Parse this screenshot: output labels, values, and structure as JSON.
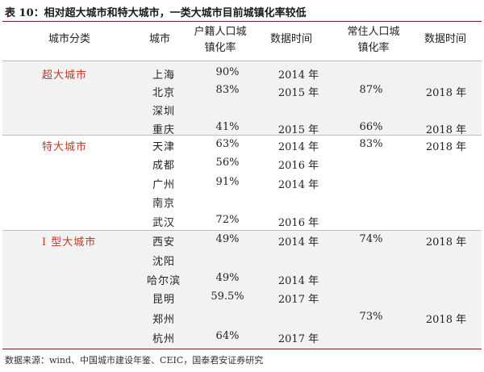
{
  "title": "表 10：相对超大城市和特大城市，一类大城市目前城镇化率较低",
  "table": {
    "headers": {
      "category": "城市分类",
      "city": "城市",
      "hukou_rate": "户籍人口城镇化率",
      "hukou_time": "数据时间",
      "resident_rate": "常住人口城镇化率",
      "resident_time": "数据时间"
    },
    "groups": [
      {
        "category": "超大城市",
        "rows": [
          {
            "city": "上海",
            "hukou_rate": "90%",
            "hukou_time": "2014 年",
            "resident_rate": "",
            "resident_time": ""
          },
          {
            "city": "北京",
            "hukou_rate": "83%",
            "hukou_time": "2015 年",
            "resident_rate": "87%",
            "resident_time": "2018 年"
          },
          {
            "city": "深圳",
            "hukou_rate": "",
            "hukou_time": "",
            "resident_rate": "",
            "resident_time": ""
          },
          {
            "city": "重庆",
            "hukou_rate": "41%",
            "hukou_time": "2015 年",
            "resident_rate": "66%",
            "resident_time": "2018 年"
          }
        ]
      },
      {
        "category": "特大城市",
        "rows": [
          {
            "city": "天津",
            "hukou_rate": "63%",
            "hukou_time": "2014 年",
            "resident_rate": "83%",
            "resident_time": "2018 年"
          },
          {
            "city": "成都",
            "hukou_rate": "56%",
            "hukou_time": "2016 年",
            "resident_rate": "",
            "resident_time": ""
          },
          {
            "city": "广州",
            "hukou_rate": "91%",
            "hukou_time": "2014 年",
            "resident_rate": "",
            "resident_time": ""
          },
          {
            "city": "南京",
            "hukou_rate": "",
            "hukou_time": "",
            "resident_rate": "",
            "resident_time": ""
          },
          {
            "city": "武汉",
            "hukou_rate": "72%",
            "hukou_time": "2016 年",
            "resident_rate": "",
            "resident_time": ""
          }
        ]
      },
      {
        "category": "I 型大城市",
        "rows": [
          {
            "city": "西安",
            "hukou_rate": "49%",
            "hukou_time": "2014 年",
            "resident_rate": "74%",
            "resident_time": "2018 年"
          },
          {
            "city": "沈阳",
            "hukou_rate": "",
            "hukou_time": "",
            "resident_rate": "",
            "resident_time": ""
          },
          {
            "city": "哈尔滨",
            "hukou_rate": "49%",
            "hukou_time": "2014 年",
            "resident_rate": "",
            "resident_time": ""
          },
          {
            "city": "昆明",
            "hukou_rate": "59.5%",
            "hukou_time": "2017 年",
            "resident_rate": "",
            "resident_time": ""
          },
          {
            "city": "郑州",
            "hukou_rate": "",
            "hukou_time": "",
            "resident_rate": "73%",
            "resident_time": "2018 年"
          },
          {
            "city": "杭州",
            "hukou_rate": "64%",
            "hukou_time": "2017 年",
            "resident_rate": "",
            "resident_time": ""
          }
        ]
      }
    ]
  },
  "source": "数据来源：wind、中国城市建设年鉴、CEIC，国泰君安证券研究",
  "colors": {
    "category_text": "#c0392b",
    "rule": "#7a1f1f",
    "shaded_band": "#f2f2f2"
  }
}
